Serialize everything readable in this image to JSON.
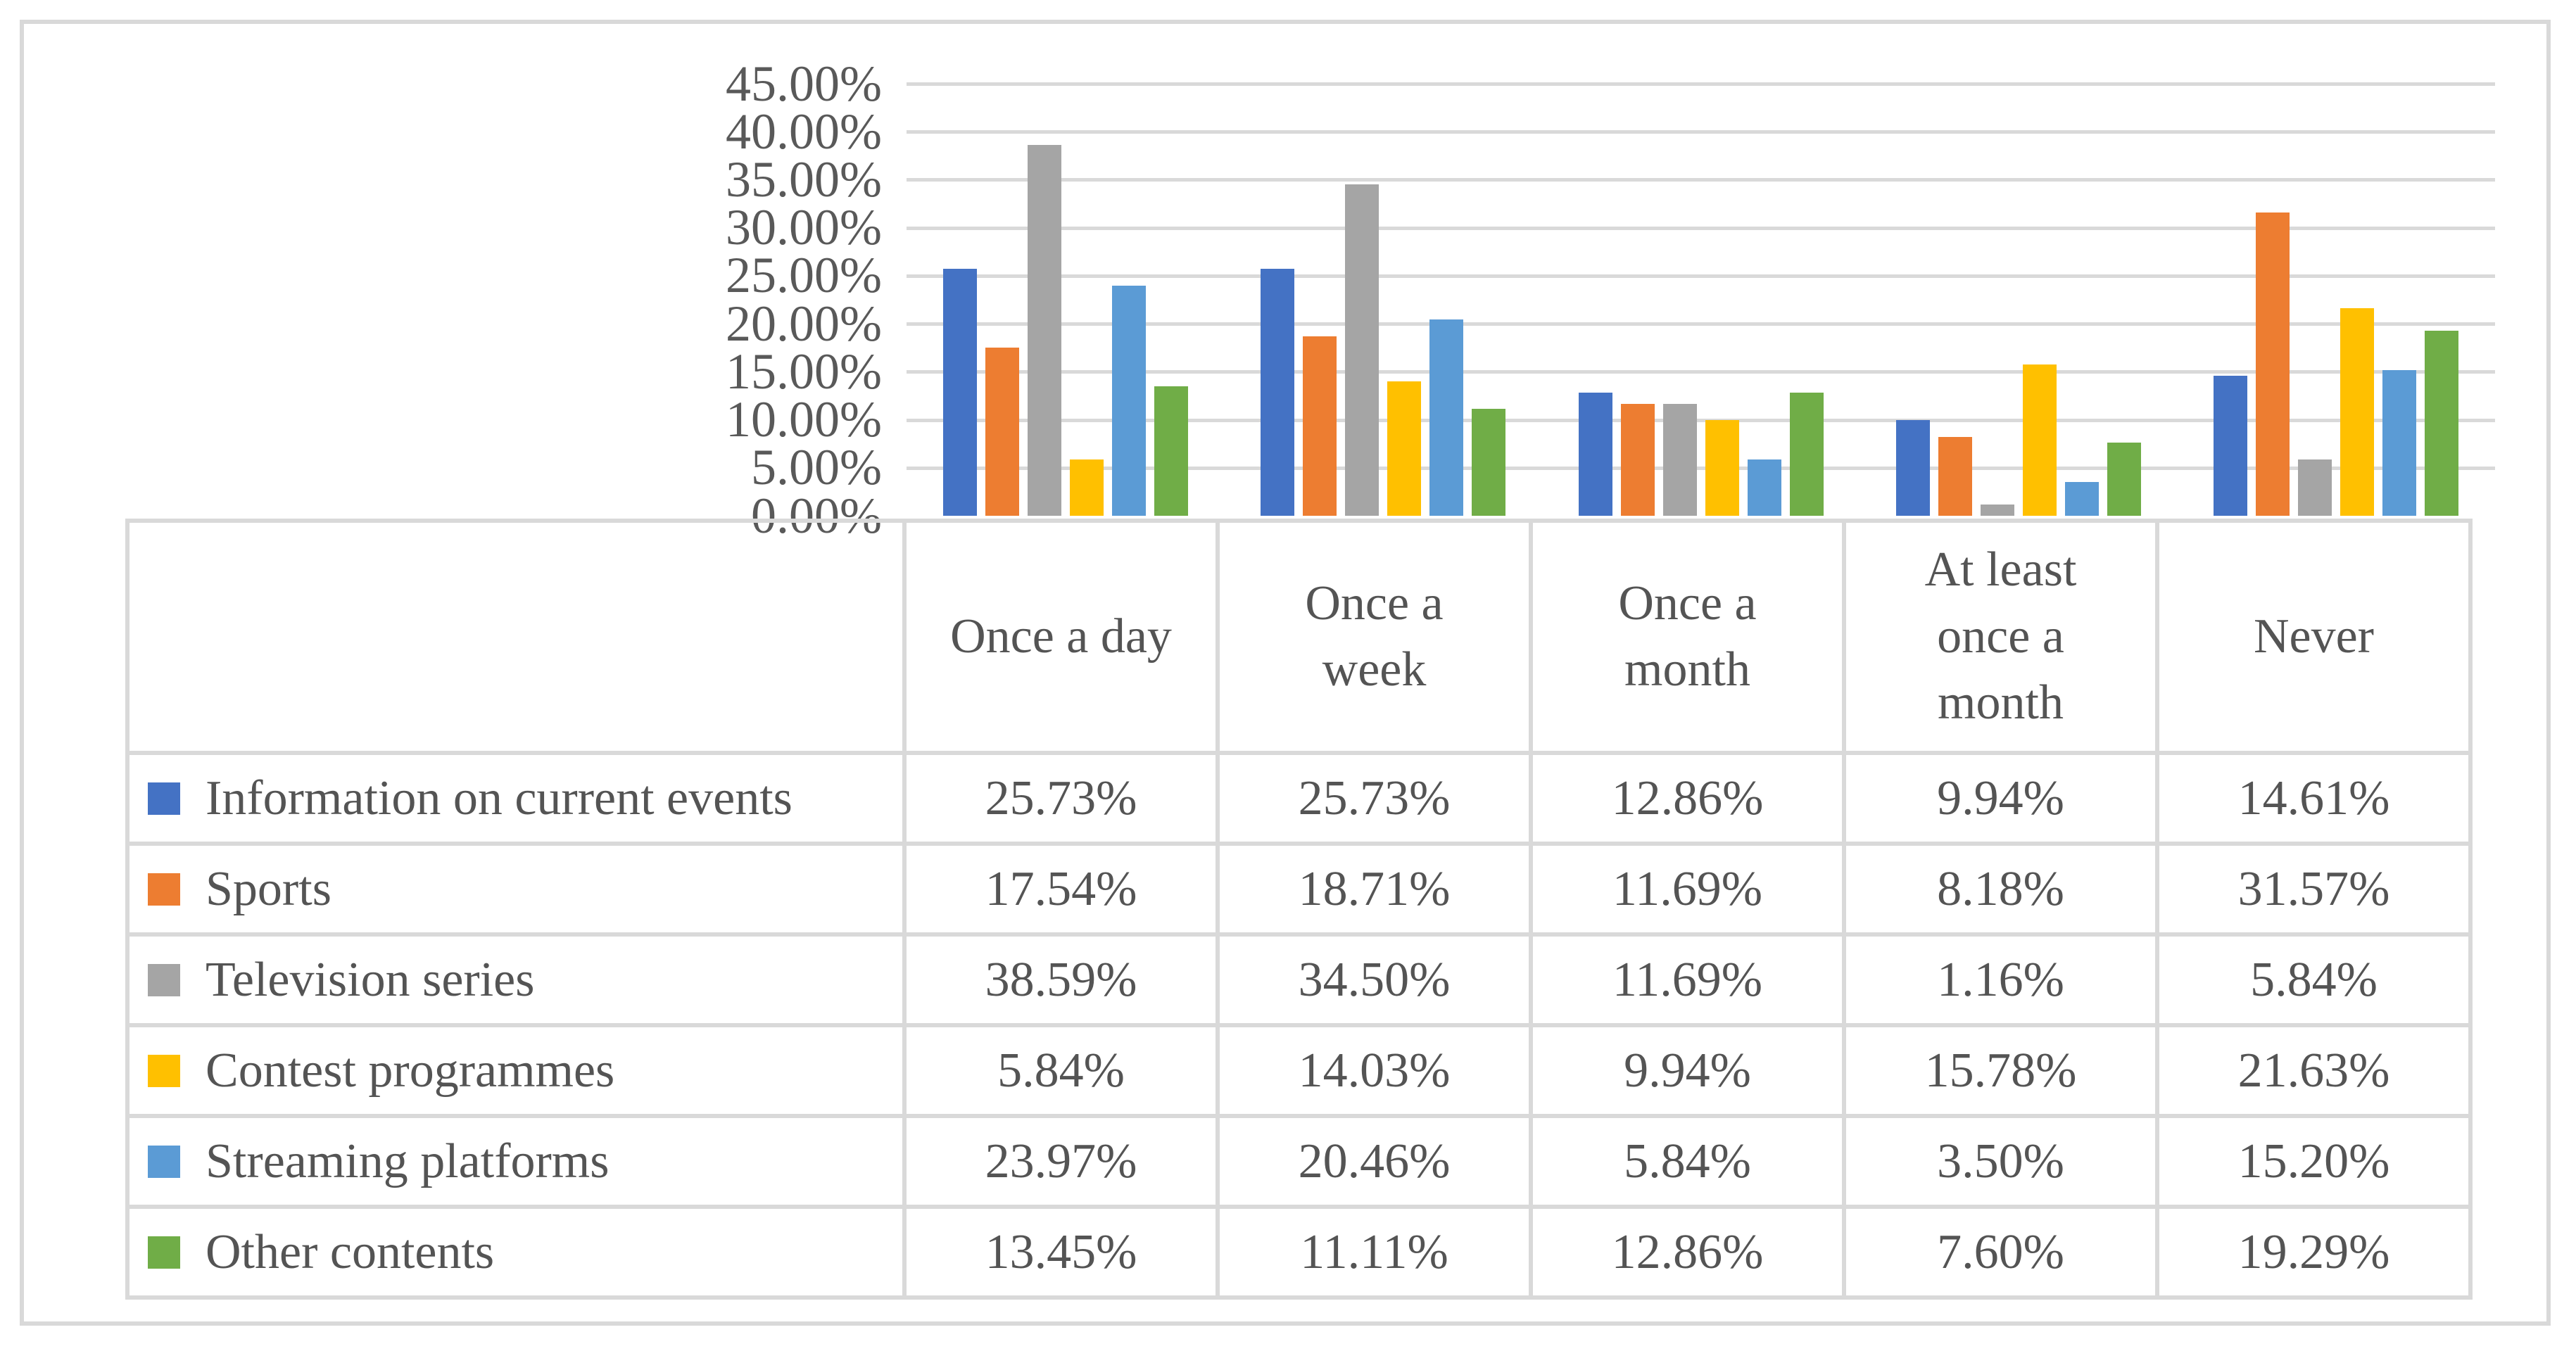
{
  "colors": {
    "background": "#FFFFFF",
    "figure_border": "#D9D9D9",
    "grid": "#D9D9D9",
    "table_border": "#D9D9D9",
    "text": "#595959"
  },
  "chart_data": {
    "type": "bar",
    "title": "",
    "xlabel": "",
    "ylabel": "",
    "categories": [
      "Once a day",
      "Once a week",
      "Once a month",
      "At least once a month",
      "Never"
    ],
    "category_display_lines": [
      [
        "Once a day"
      ],
      [
        "Once a",
        "week"
      ],
      [
        "Once a",
        "month"
      ],
      [
        "At least",
        "once a",
        "month"
      ],
      [
        "Never"
      ]
    ],
    "series": [
      {
        "name": "Information on current events",
        "color": "#4472C4",
        "values": [
          25.73,
          25.73,
          12.86,
          9.94,
          14.61
        ]
      },
      {
        "name": "Sports",
        "color": "#ED7D31",
        "values": [
          17.54,
          18.71,
          11.69,
          8.18,
          31.57
        ]
      },
      {
        "name": "Television series",
        "color": "#A5A5A5",
        "values": [
          38.59,
          34.5,
          11.69,
          1.16,
          5.84
        ]
      },
      {
        "name": "Contest programmes",
        "color": "#FFC000",
        "values": [
          5.84,
          14.03,
          9.94,
          15.78,
          21.63
        ]
      },
      {
        "name": "Streaming platforms",
        "color": "#5B9BD5",
        "values": [
          23.97,
          20.46,
          5.84,
          3.5,
          15.2
        ]
      },
      {
        "name": "Other contents",
        "color": "#70AD47",
        "values": [
          13.45,
          11.11,
          12.86,
          7.6,
          19.29
        ]
      }
    ],
    "ylim": [
      0,
      45
    ],
    "ytick_step": 5,
    "ytick_labels": [
      "0.00%",
      "5.00%",
      "10.00%",
      "15.00%",
      "20.00%",
      "25.00%",
      "30.00%",
      "35.00%",
      "40.00%",
      "45.00%"
    ],
    "grid": true,
    "legend_position": "data-table left column",
    "value_format": "0.00%"
  }
}
